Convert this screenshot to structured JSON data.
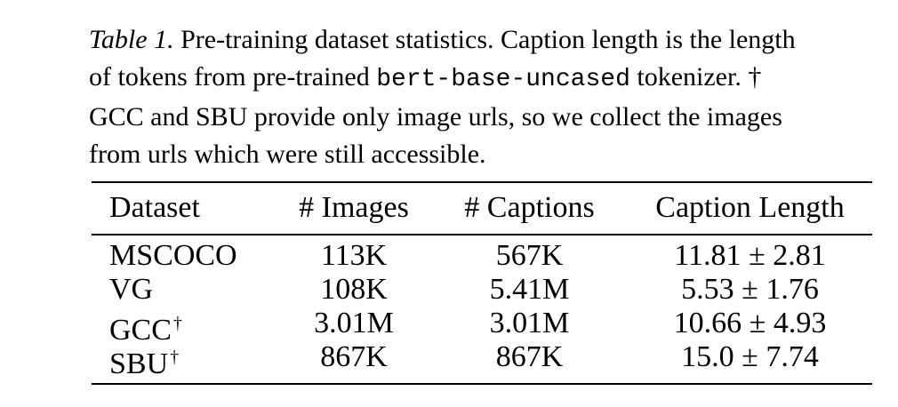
{
  "caption": {
    "label": "Table 1.",
    "line1_rest": "Pre-training dataset statistics. Caption length is the length",
    "line2_pre": "of tokens from pre-trained",
    "line2_code": "bert-base-uncased",
    "line2_post": "tokenizer. †",
    "line3": "GCC and SBU provide only image urls, so we collect the images",
    "line4": "from urls which were still accessible."
  },
  "table": {
    "headers": [
      "Dataset",
      "# Images",
      "# Captions",
      "Caption Length"
    ],
    "dagger": "†",
    "rows": [
      {
        "dataset": "MSCOCO",
        "images": "113K",
        "captions": "567K",
        "caption_length": "11.81 ± 2.81"
      },
      {
        "dataset": "VG",
        "images": "108K",
        "captions": "5.41M",
        "caption_length": "5.53 ± 1.76"
      },
      {
        "dataset": "GCC",
        "images": "3.01M",
        "captions": "3.01M",
        "caption_length": "10.66 ± 4.93"
      },
      {
        "dataset": "SBU",
        "images": "867K",
        "captions": "867K",
        "caption_length": "15.0 ± 7.74"
      }
    ]
  }
}
